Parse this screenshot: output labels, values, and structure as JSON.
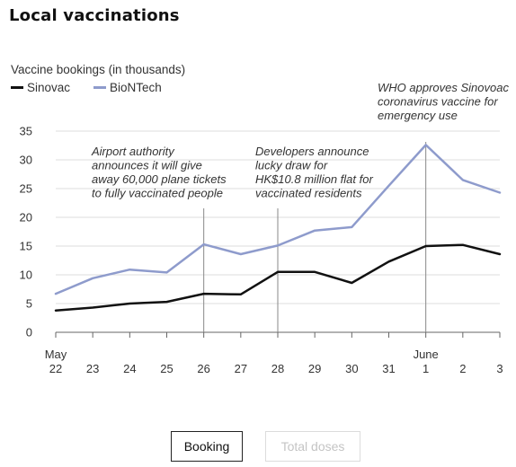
{
  "chart_data": {
    "type": "line",
    "title": "Local vaccinations",
    "ylabel": "Vaccine bookings (in thousands)",
    "ylim": [
      0,
      35
    ],
    "yticks": [
      0,
      5,
      10,
      15,
      20,
      25,
      30,
      35
    ],
    "grid": true,
    "legend_position": "top-left",
    "x": [
      "May 22",
      "May 23",
      "May 24",
      "May 25",
      "May 26",
      "May 27",
      "May 28",
      "May 29",
      "May 30",
      "May 31",
      "June 1",
      "June 2",
      "June 3"
    ],
    "xtick_labels": [
      "22",
      "23",
      "24",
      "25",
      "26",
      "27",
      "28",
      "29",
      "30",
      "31",
      "1",
      "2",
      "3"
    ],
    "xtick_month_labels": [
      {
        "index": 0,
        "label": "May"
      },
      {
        "index": 10,
        "label": "June"
      }
    ],
    "series": [
      {
        "name": "Sinovac",
        "color": "#111111",
        "values": [
          3.8,
          4.3,
          5.0,
          5.3,
          6.7,
          6.6,
          10.5,
          10.5,
          8.6,
          12.3,
          15.0,
          15.2,
          13.6
        ]
      },
      {
        "name": "BioNTech",
        "color": "#8e9bcc",
        "values": [
          6.7,
          9.4,
          10.9,
          10.4,
          15.3,
          13.6,
          15.1,
          17.7,
          18.3,
          25.5,
          32.6,
          26.5,
          24.3
        ]
      }
    ],
    "annotations": [
      {
        "x_index": 4,
        "lines": [
          "Airport authority",
          "announces it will give",
          "away 60,000 plane tickets",
          "to fully vaccinated people"
        ]
      },
      {
        "x_index": 6,
        "lines": [
          "Developers announce",
          "lucky draw for",
          "HK$10.8 million flat for",
          "vaccinated residents"
        ]
      },
      {
        "x_index": 10,
        "lines": [
          "WHO approves Sinovoac",
          "coronavirus vaccine for",
          "emergency use"
        ]
      }
    ]
  },
  "buttons": {
    "booking": "Booking",
    "total_doses": "Total doses"
  }
}
